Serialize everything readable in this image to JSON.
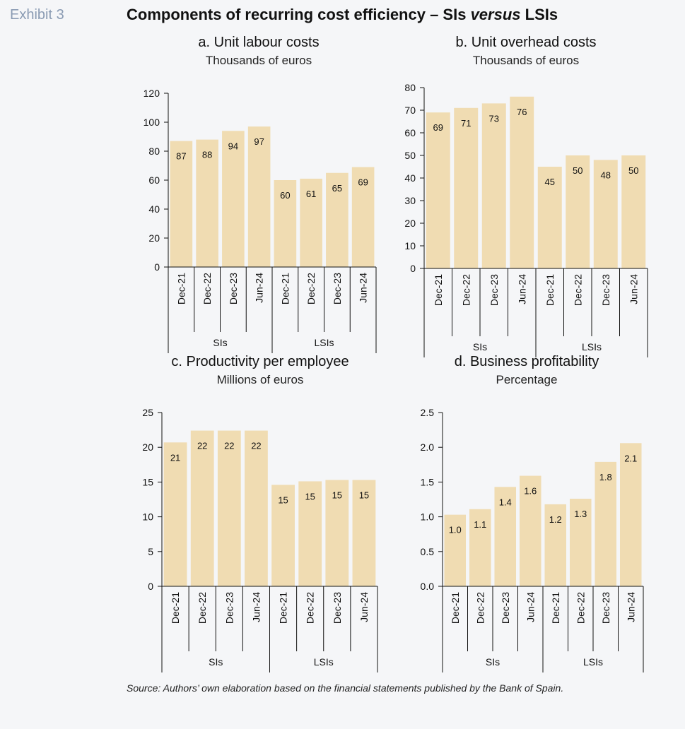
{
  "header": {
    "exhibit_label": "Exhibit 3",
    "title_part1": "Components of recurring cost efficiency – SIs ",
    "title_italic": "versus",
    "title_part2": " LSIs"
  },
  "colors": {
    "bar": "#f0dcb2",
    "axis": "#111111",
    "background": "#f5f6f8"
  },
  "chart_data": [
    {
      "type": "bar",
      "title": "a. Unit labour costs",
      "subtitle": "Thousands of euros",
      "categories": [
        "Dec-21",
        "Dec-22",
        "Dec-23",
        "Jun-24",
        "Dec-21",
        "Dec-22",
        "Dec-23",
        "Jun-24"
      ],
      "groups": [
        {
          "name": "SIs",
          "count": 4
        },
        {
          "name": "LSIs",
          "count": 4
        }
      ],
      "values": [
        87,
        88,
        94,
        97,
        60,
        61,
        65,
        69
      ],
      "labels": [
        "87",
        "88",
        "94",
        "97",
        "60",
        "61",
        "65",
        "69"
      ],
      "yticks": [
        "0",
        "20",
        "40",
        "60",
        "80",
        "100",
        "120"
      ],
      "ylim": [
        0,
        120
      ],
      "grid": false
    },
    {
      "type": "bar",
      "title": "b. Unit overhead costs",
      "subtitle": "Thousands of euros",
      "categories": [
        "Dec-21",
        "Dec-22",
        "Dec-23",
        "Jun-24",
        "Dec-21",
        "Dec-22",
        "Dec-23",
        "Jun-24"
      ],
      "groups": [
        {
          "name": "SIs",
          "count": 4
        },
        {
          "name": "LSIs",
          "count": 4
        }
      ],
      "values": [
        69,
        71,
        73,
        76,
        45,
        50,
        48,
        50
      ],
      "labels": [
        "69",
        "71",
        "73",
        "76",
        "45",
        "50",
        "48",
        "50"
      ],
      "yticks": [
        "0",
        "10",
        "20",
        "30",
        "40",
        "50",
        "60",
        "70",
        "80"
      ],
      "ylim": [
        0,
        80
      ],
      "grid": false
    },
    {
      "type": "bar",
      "title": "c. Productivity per employee",
      "subtitle": "Millions of euros",
      "categories": [
        "Dec-21",
        "Dec-22",
        "Dec-23",
        "Jun-24",
        "Dec-21",
        "Dec-22",
        "Dec-23",
        "Jun-24"
      ],
      "groups": [
        {
          "name": "SIs",
          "count": 4
        },
        {
          "name": "LSIs",
          "count": 4
        }
      ],
      "values": [
        20.7,
        22.4,
        22.4,
        22.4,
        14.6,
        15.1,
        15.3,
        15.3
      ],
      "labels": [
        "21",
        "22",
        "22",
        "22",
        "15",
        "15",
        "15",
        "15"
      ],
      "yticks": [
        "0",
        "5",
        "10",
        "15",
        "20",
        "25"
      ],
      "ylim": [
        0,
        25
      ],
      "grid": false
    },
    {
      "type": "bar",
      "title": "d. Business profitability",
      "subtitle": "Percentage",
      "categories": [
        "Dec-21",
        "Dec-22",
        "Dec-23",
        "Jun-24",
        "Dec-21",
        "Dec-22",
        "Dec-23",
        "Jun-24"
      ],
      "groups": [
        {
          "name": "SIs",
          "count": 4
        },
        {
          "name": "LSIs",
          "count": 4
        }
      ],
      "values": [
        1.03,
        1.11,
        1.43,
        1.59,
        1.18,
        1.26,
        1.79,
        2.06
      ],
      "labels": [
        "1.0",
        "1.1",
        "1.4",
        "1.6",
        "1.2",
        "1.3",
        "1.8",
        "2.1"
      ],
      "yticks": [
        "0.0",
        "0.5",
        "1.0",
        "1.5",
        "2.0",
        "2.5"
      ],
      "ylim": [
        0,
        2.5
      ],
      "grid": false
    }
  ],
  "footer": {
    "source": "Source: Authors’ own elaboration based on the financial statements published by the Bank of Spain."
  }
}
